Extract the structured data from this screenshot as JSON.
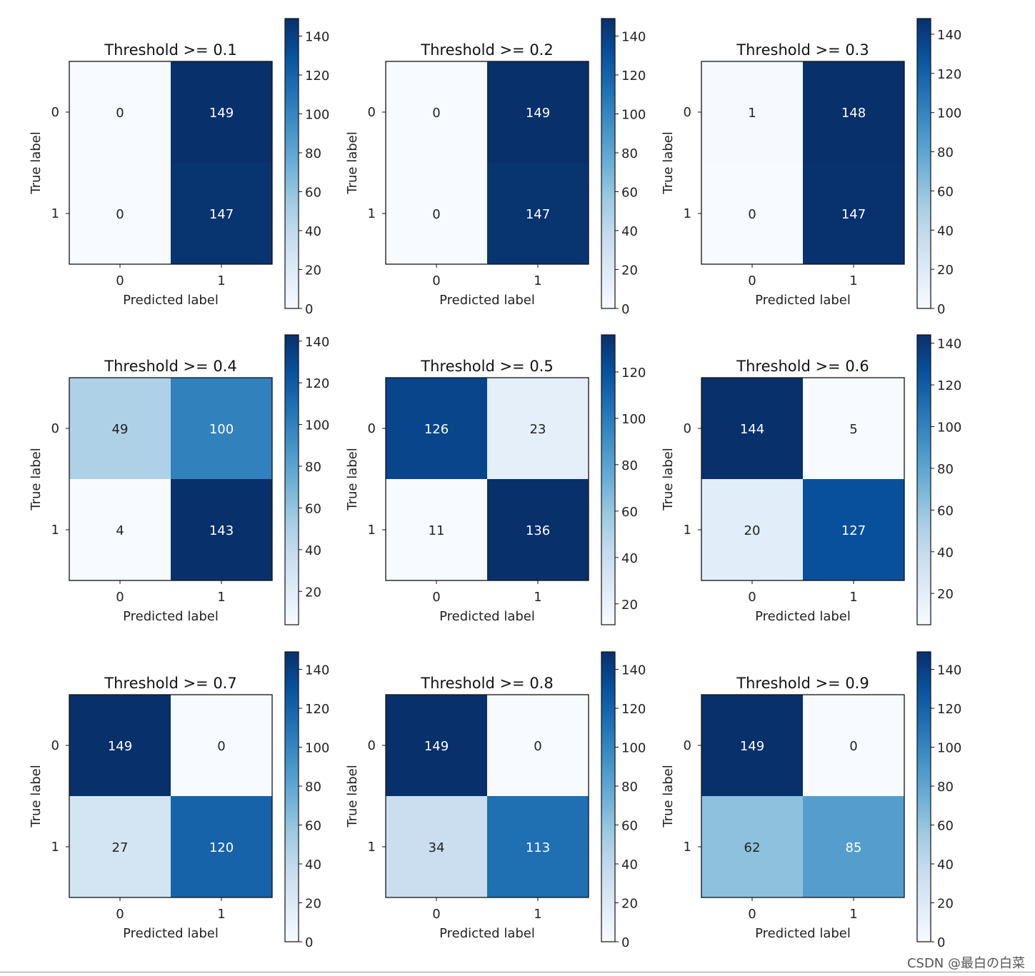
{
  "figure": {
    "watermark": "CSDN @最白の白菜"
  },
  "chart_data": [
    {
      "type": "heatmap",
      "title": "Threshold >= 0.1",
      "xlabel": "Predicted label",
      "ylabel": "True label",
      "x_ticks": [
        "0",
        "1"
      ],
      "y_ticks": [
        "0",
        "1"
      ],
      "matrix": [
        [
          0,
          149
        ],
        [
          0,
          147
        ]
      ],
      "colormap": "Blues",
      "colorbar": {
        "range": [
          0,
          149
        ],
        "ticks": [
          0,
          20,
          40,
          60,
          80,
          100,
          120,
          140
        ]
      }
    },
    {
      "type": "heatmap",
      "title": "Threshold >= 0.2",
      "xlabel": "Predicted label",
      "ylabel": "True label",
      "x_ticks": [
        "0",
        "1"
      ],
      "y_ticks": [
        "0",
        "1"
      ],
      "matrix": [
        [
          0,
          149
        ],
        [
          0,
          147
        ]
      ],
      "colormap": "Blues",
      "colorbar": {
        "range": [
          0,
          149
        ],
        "ticks": [
          0,
          20,
          40,
          60,
          80,
          100,
          120,
          140
        ]
      }
    },
    {
      "type": "heatmap",
      "title": "Threshold >= 0.3",
      "xlabel": "Predicted label",
      "ylabel": "True label",
      "x_ticks": [
        "0",
        "1"
      ],
      "y_ticks": [
        "0",
        "1"
      ],
      "matrix": [
        [
          1,
          148
        ],
        [
          0,
          147
        ]
      ],
      "colormap": "Blues",
      "colorbar": {
        "range": [
          0,
          148
        ],
        "ticks": [
          0,
          20,
          40,
          60,
          80,
          100,
          120,
          140
        ]
      }
    },
    {
      "type": "heatmap",
      "title": "Threshold >= 0.4",
      "xlabel": "Predicted label",
      "ylabel": "True label",
      "x_ticks": [
        "0",
        "1"
      ],
      "y_ticks": [
        "0",
        "1"
      ],
      "matrix": [
        [
          49,
          100
        ],
        [
          4,
          143
        ]
      ],
      "colormap": "Blues",
      "colorbar": {
        "range": [
          4,
          143
        ],
        "ticks": [
          20,
          40,
          60,
          80,
          100,
          120,
          140
        ]
      }
    },
    {
      "type": "heatmap",
      "title": "Threshold >= 0.5",
      "xlabel": "Predicted label",
      "ylabel": "True label",
      "x_ticks": [
        "0",
        "1"
      ],
      "y_ticks": [
        "0",
        "1"
      ],
      "matrix": [
        [
          126,
          23
        ],
        [
          11,
          136
        ]
      ],
      "colormap": "Blues",
      "colorbar": {
        "range": [
          11,
          136
        ],
        "ticks": [
          20,
          40,
          60,
          80,
          100,
          120
        ]
      }
    },
    {
      "type": "heatmap",
      "title": "Threshold >= 0.6",
      "xlabel": "Predicted label",
      "ylabel": "True label",
      "x_ticks": [
        "0",
        "1"
      ],
      "y_ticks": [
        "0",
        "1"
      ],
      "matrix": [
        [
          144,
          5
        ],
        [
          20,
          127
        ]
      ],
      "colormap": "Blues",
      "colorbar": {
        "range": [
          5,
          144
        ],
        "ticks": [
          20,
          40,
          60,
          80,
          100,
          120,
          140
        ]
      }
    },
    {
      "type": "heatmap",
      "title": "Threshold >= 0.7",
      "xlabel": "Predicted label",
      "ylabel": "True label",
      "x_ticks": [
        "0",
        "1"
      ],
      "y_ticks": [
        "0",
        "1"
      ],
      "matrix": [
        [
          149,
          0
        ],
        [
          27,
          120
        ]
      ],
      "colormap": "Blues",
      "colorbar": {
        "range": [
          0,
          149
        ],
        "ticks": [
          0,
          20,
          40,
          60,
          80,
          100,
          120,
          140
        ]
      }
    },
    {
      "type": "heatmap",
      "title": "Threshold >= 0.8",
      "xlabel": "Predicted label",
      "ylabel": "True label",
      "x_ticks": [
        "0",
        "1"
      ],
      "y_ticks": [
        "0",
        "1"
      ],
      "matrix": [
        [
          149,
          0
        ],
        [
          34,
          113
        ]
      ],
      "colormap": "Blues",
      "colorbar": {
        "range": [
          0,
          149
        ],
        "ticks": [
          0,
          20,
          40,
          60,
          80,
          100,
          120,
          140
        ]
      }
    },
    {
      "type": "heatmap",
      "title": "Threshold >= 0.9",
      "xlabel": "Predicted label",
      "ylabel": "True label",
      "x_ticks": [
        "0",
        "1"
      ],
      "y_ticks": [
        "0",
        "1"
      ],
      "matrix": [
        [
          149,
          0
        ],
        [
          62,
          85
        ]
      ],
      "colormap": "Blues",
      "colorbar": {
        "range": [
          0,
          149
        ],
        "ticks": [
          0,
          20,
          40,
          60,
          80,
          100,
          120,
          140
        ]
      }
    }
  ]
}
